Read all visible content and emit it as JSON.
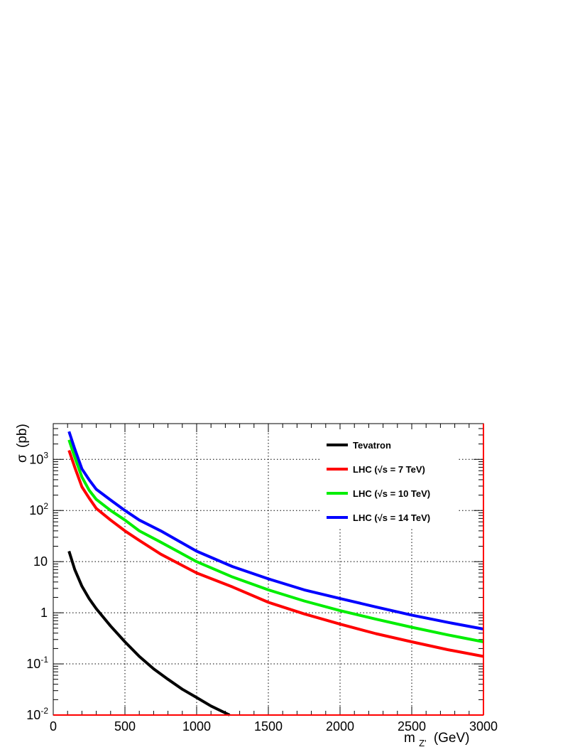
{
  "chart_data": {
    "type": "line",
    "xlabel": "m",
    "xlabel_sub": "Z'",
    "xlabel_unit": "(GeV)",
    "ylabel_symbol": "σ",
    "ylabel_unit": "(pb)",
    "xlim": [
      0,
      3000
    ],
    "ylim": [
      0.01,
      5000
    ],
    "yscale": "log",
    "grid": true,
    "legend_position": "top-right",
    "x_ticks": [
      {
        "value": 0,
        "label": "0"
      },
      {
        "value": 500,
        "label": "500"
      },
      {
        "value": 1000,
        "label": "1000"
      },
      {
        "value": 1500,
        "label": "1500"
      },
      {
        "value": 2000,
        "label": "2000"
      },
      {
        "value": 2500,
        "label": "2500"
      },
      {
        "value": 3000,
        "label": "3000"
      }
    ],
    "y_ticks": [
      {
        "value": 0.01,
        "base": "10",
        "exp": "-2"
      },
      {
        "value": 0.1,
        "base": "10",
        "exp": "-1"
      },
      {
        "value": 1,
        "base": "1",
        "exp": ""
      },
      {
        "value": 10,
        "base": "10",
        "exp": ""
      },
      {
        "value": 100,
        "base": "10",
        "exp": "2"
      },
      {
        "value": 1000,
        "base": "10",
        "exp": "3"
      }
    ],
    "series": [
      {
        "name": "Tevatron",
        "color": "#000000",
        "x": [
          110,
          150,
          200,
          250,
          300,
          400,
          500,
          600,
          700,
          800,
          900,
          1000,
          1100,
          1230
        ],
        "y": [
          16,
          7,
          3.3,
          1.9,
          1.2,
          0.55,
          0.27,
          0.14,
          0.08,
          0.05,
          0.032,
          0.022,
          0.015,
          0.01
        ]
      },
      {
        "name": "LHC (√s =  7 TeV)",
        "color": "#ff0000",
        "x": [
          110,
          150,
          200,
          250,
          300,
          400,
          500,
          600,
          750,
          1000,
          1250,
          1500,
          1750,
          2000,
          2250,
          2500,
          2750,
          3000
        ],
        "y": [
          1500,
          700,
          290,
          175,
          110,
          65,
          40,
          26,
          14,
          6,
          3.2,
          1.6,
          0.95,
          0.6,
          0.39,
          0.27,
          0.19,
          0.14
        ]
      },
      {
        "name": "LHC (√s = 10 TeV)",
        "color": "#00ee00",
        "x": [
          110,
          150,
          200,
          250,
          300,
          400,
          500,
          600,
          750,
          1000,
          1250,
          1500,
          1750,
          2000,
          2250,
          2500,
          2750,
          3000
        ],
        "y": [
          2400,
          1100,
          450,
          250,
          165,
          100,
          65,
          40,
          24,
          10,
          5,
          2.8,
          1.7,
          1.1,
          0.75,
          0.52,
          0.37,
          0.27
        ]
      },
      {
        "name": "LHC (√s = 14 TeV)",
        "color": "#0000ff",
        "x": [
          110,
          150,
          200,
          250,
          300,
          400,
          500,
          600,
          750,
          1000,
          1250,
          1500,
          1750,
          2000,
          2250,
          2500,
          2750,
          3000
        ],
        "y": [
          3500,
          1600,
          650,
          400,
          260,
          160,
          100,
          65,
          40,
          16,
          8,
          4.6,
          2.8,
          1.9,
          1.3,
          0.9,
          0.65,
          0.48
        ]
      }
    ]
  }
}
